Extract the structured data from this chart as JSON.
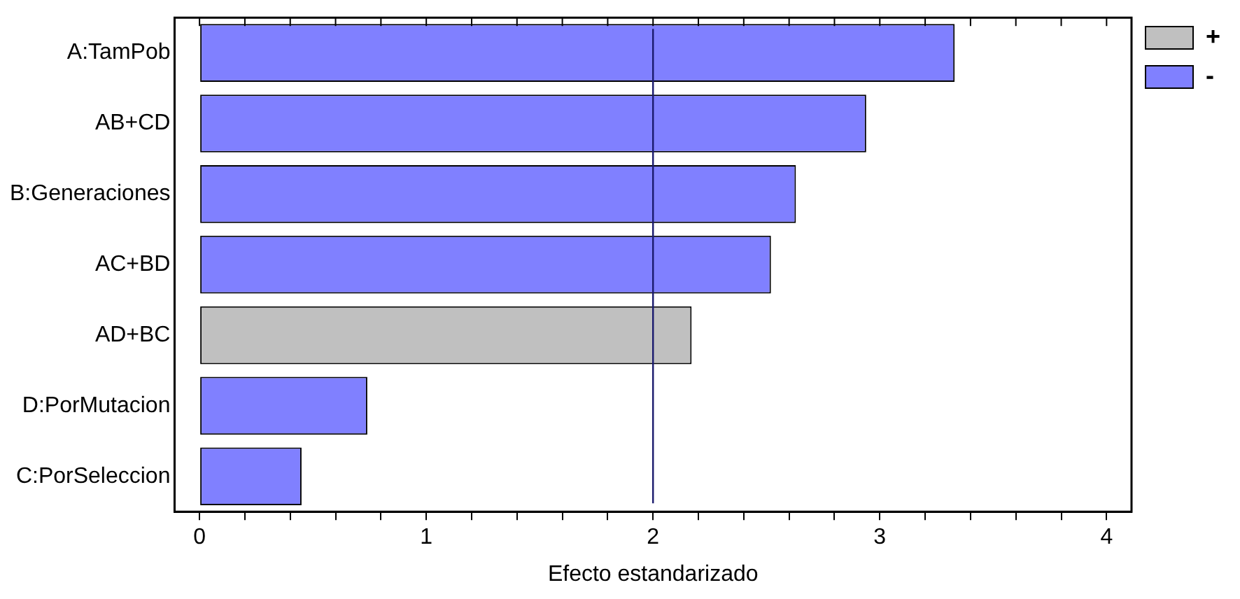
{
  "chart_data": {
    "type": "bar",
    "orientation": "horizontal",
    "stacked": true,
    "xlabel": "Efecto estandarizado",
    "categories": [
      "A:TamPob",
      "AB+CD",
      "B:Generaciones",
      "AC+BD",
      "AD+BC",
      "D:PorMutacion",
      "C:PorSeleccion"
    ],
    "series": [
      {
        "name": "+",
        "color": "#c0c0c0",
        "values": [
          null,
          null,
          null,
          null,
          2.17,
          null,
          null
        ]
      },
      {
        "name": "-",
        "color": "#8080ff",
        "values": [
          3.33,
          2.94,
          2.63,
          2.52,
          null,
          0.74,
          0.45
        ]
      }
    ],
    "xlim": [
      -0.11,
      4.11
    ],
    "xticks": [
      0,
      {
        "value": 0.2,
        "label": null
      },
      {
        "value": 0.4,
        "label": null
      },
      {
        "value": 0.6,
        "label": null
      },
      {
        "value": 0.8,
        "label": null
      },
      1,
      {
        "value": 1.2,
        "label": null
      },
      {
        "value": 1.4,
        "label": null
      },
      {
        "value": 1.6,
        "label": null
      },
      {
        "value": 1.8,
        "label": null
      },
      2,
      {
        "value": 2.2,
        "label": null
      },
      {
        "value": 2.4,
        "label": null
      },
      {
        "value": 2.6,
        "label": null
      },
      {
        "value": 2.8,
        "label": null
      },
      3,
      {
        "value": 3.2,
        "label": null
      },
      {
        "value": 3.4,
        "label": null
      },
      {
        "value": 3.6,
        "label": null
      },
      {
        "value": 3.8,
        "label": null
      },
      4
    ],
    "ref_lines": [
      {
        "axis": "x",
        "value": 2,
        "color": "#1a1a6e"
      }
    ],
    "grid": false,
    "legend": "top right"
  }
}
